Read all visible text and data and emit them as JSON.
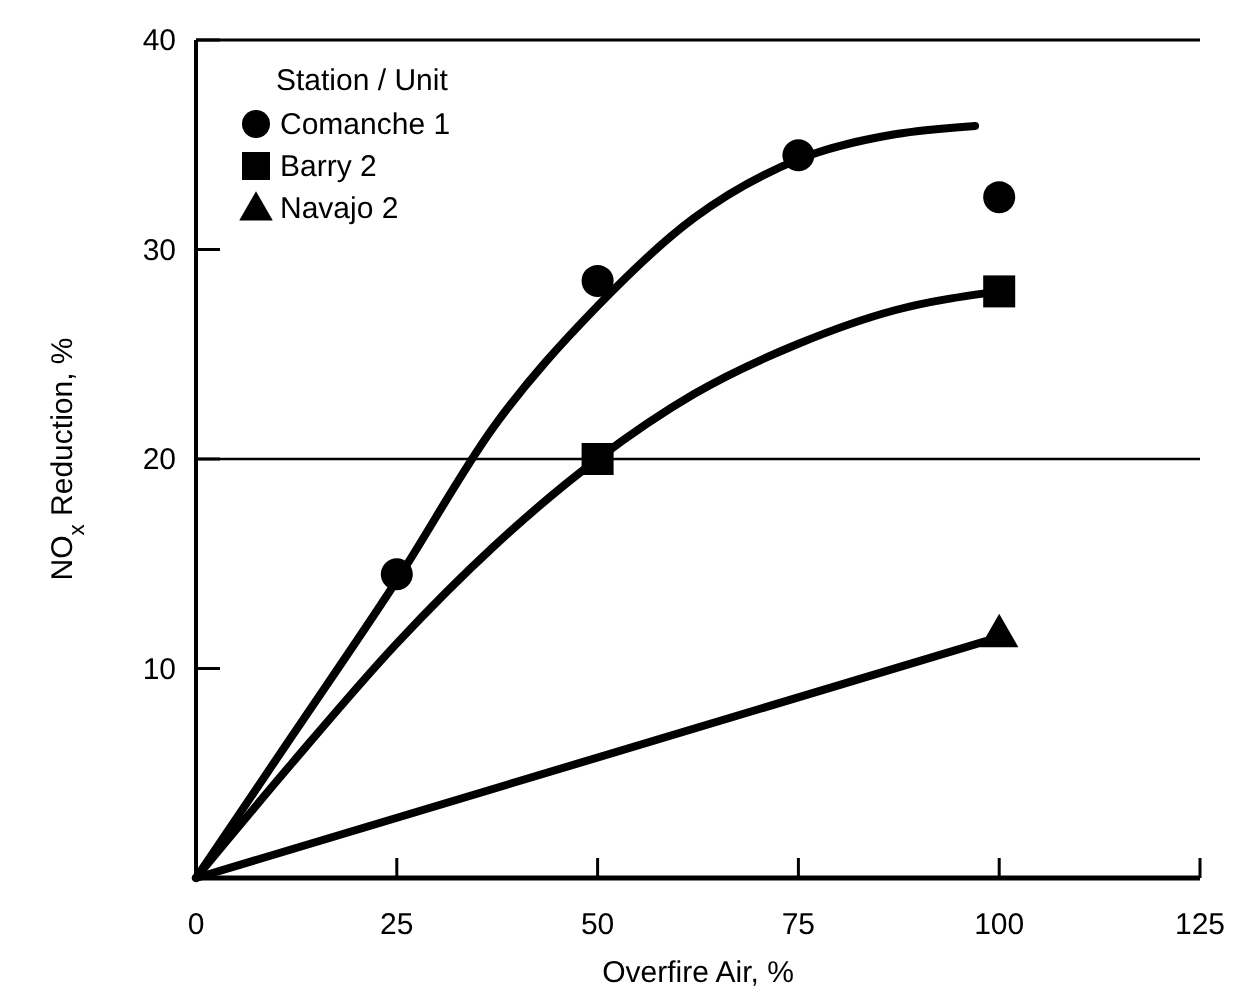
{
  "chart_data": {
    "type": "scatter",
    "xlabel": "Overfire Air, %",
    "ylabel": "NO$_{x}$ Reduction, %",
    "legend_title": "Station / Unit",
    "xlim": [
      0,
      125
    ],
    "ylim": [
      0,
      40
    ],
    "xticks": [
      0,
      25,
      50,
      75,
      100,
      125
    ],
    "yticks": [
      10,
      20,
      30,
      40
    ],
    "legend": "top left",
    "grid": false,
    "ref_lines": [
      {
        "axis": "y",
        "value": 20,
        "color": "#000000"
      }
    ],
    "series": [
      {
        "name": "Comanche 1",
        "marker": "circle",
        "color": "#000000",
        "x": [
          25,
          50,
          75,
          100
        ],
        "values": [
          14.5,
          28.5,
          34.5,
          32.5
        ]
      },
      {
        "name": "Barry 2",
        "marker": "square",
        "color": "#000000",
        "x": [
          50,
          100
        ],
        "values": [
          20,
          28
        ]
      },
      {
        "name": "Navajo 2",
        "marker": "triangle",
        "color": "#000000",
        "x": [
          100
        ],
        "values": [
          11.7
        ]
      },
      {
        "type": "line",
        "color": "#000000",
        "x": [
          0,
          12,
          25,
          37,
          50,
          62,
          75,
          87,
          97
        ],
        "values": [
          0,
          6.8,
          14.2,
          21.5,
          27.3,
          31.5,
          34.3,
          35.5,
          35.9
        ]
      },
      {
        "type": "line",
        "color": "#000000",
        "x": [
          0,
          12,
          25,
          37,
          50,
          62,
          75,
          87,
          100
        ],
        "values": [
          0,
          5.5,
          11.2,
          15.8,
          20,
          23.1,
          25.5,
          27.1,
          28
        ]
      },
      {
        "type": "line",
        "color": "#000000",
        "x": [
          0,
          100
        ],
        "values": [
          0,
          11.5
        ]
      }
    ]
  }
}
